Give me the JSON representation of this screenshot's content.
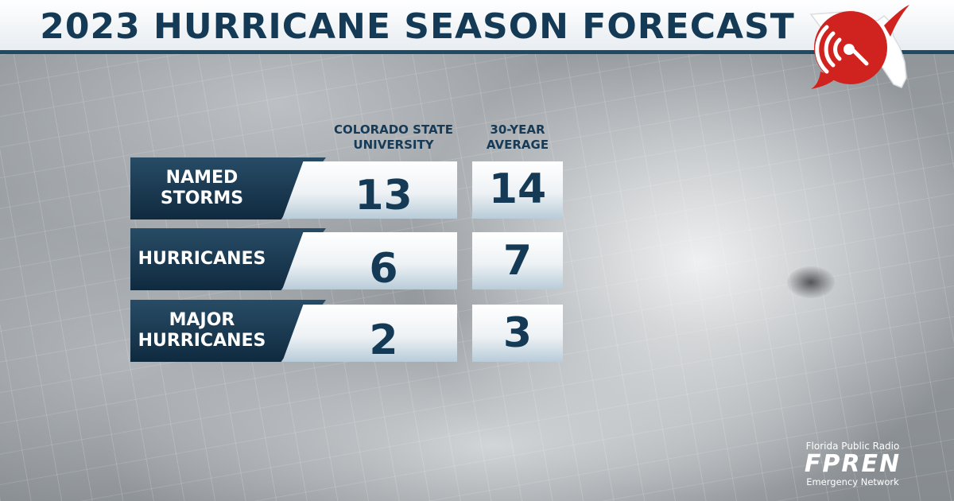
{
  "title": "2023 HURRICANE SEASON FORECAST",
  "columns": {
    "csu": "COLORADO STATE UNIVERSITY",
    "csu_line1": "COLORADO STATE",
    "csu_line2": "UNIVERSITY",
    "avg": "30-YEAR AVERAGE",
    "avg_line1": "30-YEAR",
    "avg_line2": "AVERAGE"
  },
  "rows": [
    {
      "label_line1": "NAMED",
      "label_line2": "STORMS",
      "csu": "13",
      "avg": "14"
    },
    {
      "label_line1": "HURRICANES",
      "label_line2": "",
      "csu": "6",
      "avg": "7"
    },
    {
      "label_line1": "MAJOR",
      "label_line2": "HURRICANES",
      "csu": "2",
      "avg": "3"
    }
  ],
  "footer": {
    "top": "Florida Public Radio",
    "main": "FPREN",
    "bottom": "Emergency Network"
  },
  "colors": {
    "navy": "#143a56",
    "label_bg": "#1a3a52",
    "logo_red": "#d0231f"
  },
  "icons": {
    "logo": "florida-radio-signal-icon"
  }
}
